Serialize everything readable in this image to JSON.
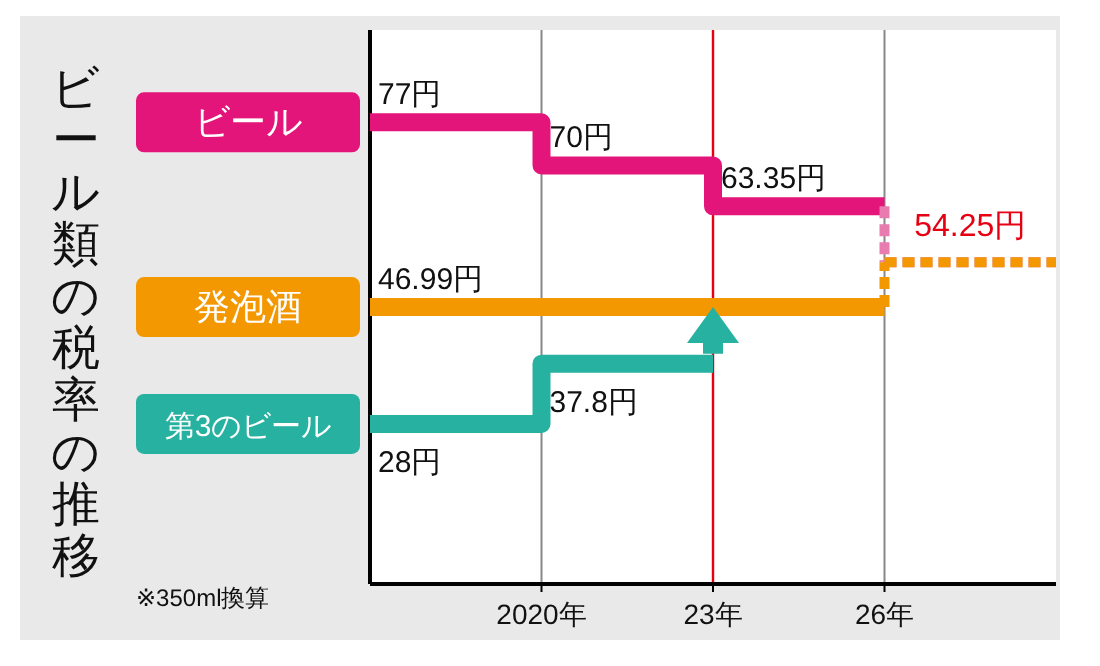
{
  "chart_data": {
    "type": "step",
    "title": "ビール類の税率の推移",
    "categories": [
      null,
      "2020年",
      "23年",
      "26年",
      null
    ],
    "ylim": [
      2,
      92
    ],
    "tick_labels": "x",
    "grid": "x",
    "series": [
      {
        "name": "ビール",
        "color": "#e4157a",
        "values": [
          77,
          70,
          63.35,
          63.35,
          null
        ],
        "value_labels": [
          "77円",
          "70円",
          "63.35円",
          null,
          null
        ]
      },
      {
        "color": "#e87bb0",
        "line_style": "dashed",
        "values": [
          null,
          null,
          null,
          54.25,
          54.25
        ],
        "value_labels": [
          null,
          null,
          null,
          "54.25円",
          null
        ]
      },
      {
        "name": "第3のビール",
        "color": "#27b1a0",
        "values": [
          28,
          37.8,
          37.8,
          null,
          null
        ],
        "value_labels": [
          "28円",
          "37.8円",
          null,
          null,
          null
        ]
      },
      {
        "name": "発泡酒",
        "color": "#f39800",
        "values": [
          46.99,
          46.99,
          46.99,
          46.99,
          null
        ],
        "value_labels": [
          "46.99円",
          null,
          null,
          null,
          null
        ]
      },
      {
        "color": "#f39800",
        "line_style": "dashed",
        "values": [
          null,
          null,
          null,
          54.25,
          54.25
        ]
      }
    ],
    "ref_lines": [
      {
        "axis": "x",
        "value": "23年",
        "color": "#e60012"
      }
    ],
    "annotations": [
      "※350ml換算"
    ]
  }
}
